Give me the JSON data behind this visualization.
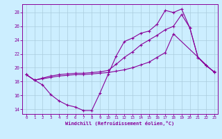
{
  "xlabel": "Windchill (Refroidissement éolien,°C)",
  "bg_color": "#cceeff",
  "grid_color": "#aaccdd",
  "line_color": "#880099",
  "xlim_min": -0.5,
  "xlim_max": 23.4,
  "ylim_min": 13.3,
  "ylim_max": 29.2,
  "yticks": [
    14,
    16,
    18,
    20,
    22,
    24,
    26,
    28
  ],
  "xticks": [
    0,
    1,
    2,
    3,
    4,
    5,
    6,
    7,
    8,
    9,
    10,
    11,
    12,
    13,
    14,
    15,
    16,
    17,
    18,
    19,
    20,
    21,
    22,
    23
  ],
  "series": [
    {
      "x": [
        0,
        1,
        2,
        3,
        4,
        5,
        6,
        7,
        8,
        9,
        10,
        11,
        12,
        13,
        14,
        15,
        16,
        17,
        18,
        19,
        20,
        21,
        22,
        23
      ],
      "y": [
        19.0,
        18.2,
        17.5,
        16.1,
        15.2,
        14.6,
        14.3,
        13.8,
        13.8,
        16.3,
        19.0,
        21.7,
        23.8,
        24.3,
        25.0,
        25.3,
        26.3,
        28.3,
        28.0,
        28.5,
        25.8,
        21.5,
        20.3,
        19.4
      ]
    },
    {
      "x": [
        0,
        1,
        2,
        3,
        4,
        5,
        6,
        7,
        8,
        9,
        10,
        11,
        12,
        13,
        14,
        15,
        16,
        17,
        18,
        19,
        20,
        21,
        22,
        23
      ],
      "y": [
        19.0,
        18.2,
        18.5,
        18.8,
        19.0,
        19.1,
        19.2,
        19.2,
        19.3,
        19.4,
        19.6,
        20.5,
        21.5,
        22.3,
        23.3,
        24.0,
        24.7,
        25.5,
        26.0,
        27.7,
        25.8,
        21.5,
        20.3,
        19.4
      ]
    },
    {
      "x": [
        0,
        1,
        2,
        3,
        4,
        5,
        6,
        7,
        8,
        9,
        10,
        11,
        12,
        13,
        14,
        15,
        16,
        17,
        18,
        23
      ],
      "y": [
        19.0,
        18.2,
        18.4,
        18.6,
        18.8,
        18.9,
        19.0,
        19.0,
        19.1,
        19.2,
        19.3,
        19.5,
        19.7,
        20.0,
        20.4,
        20.8,
        21.5,
        22.2,
        24.9,
        19.3
      ]
    }
  ]
}
